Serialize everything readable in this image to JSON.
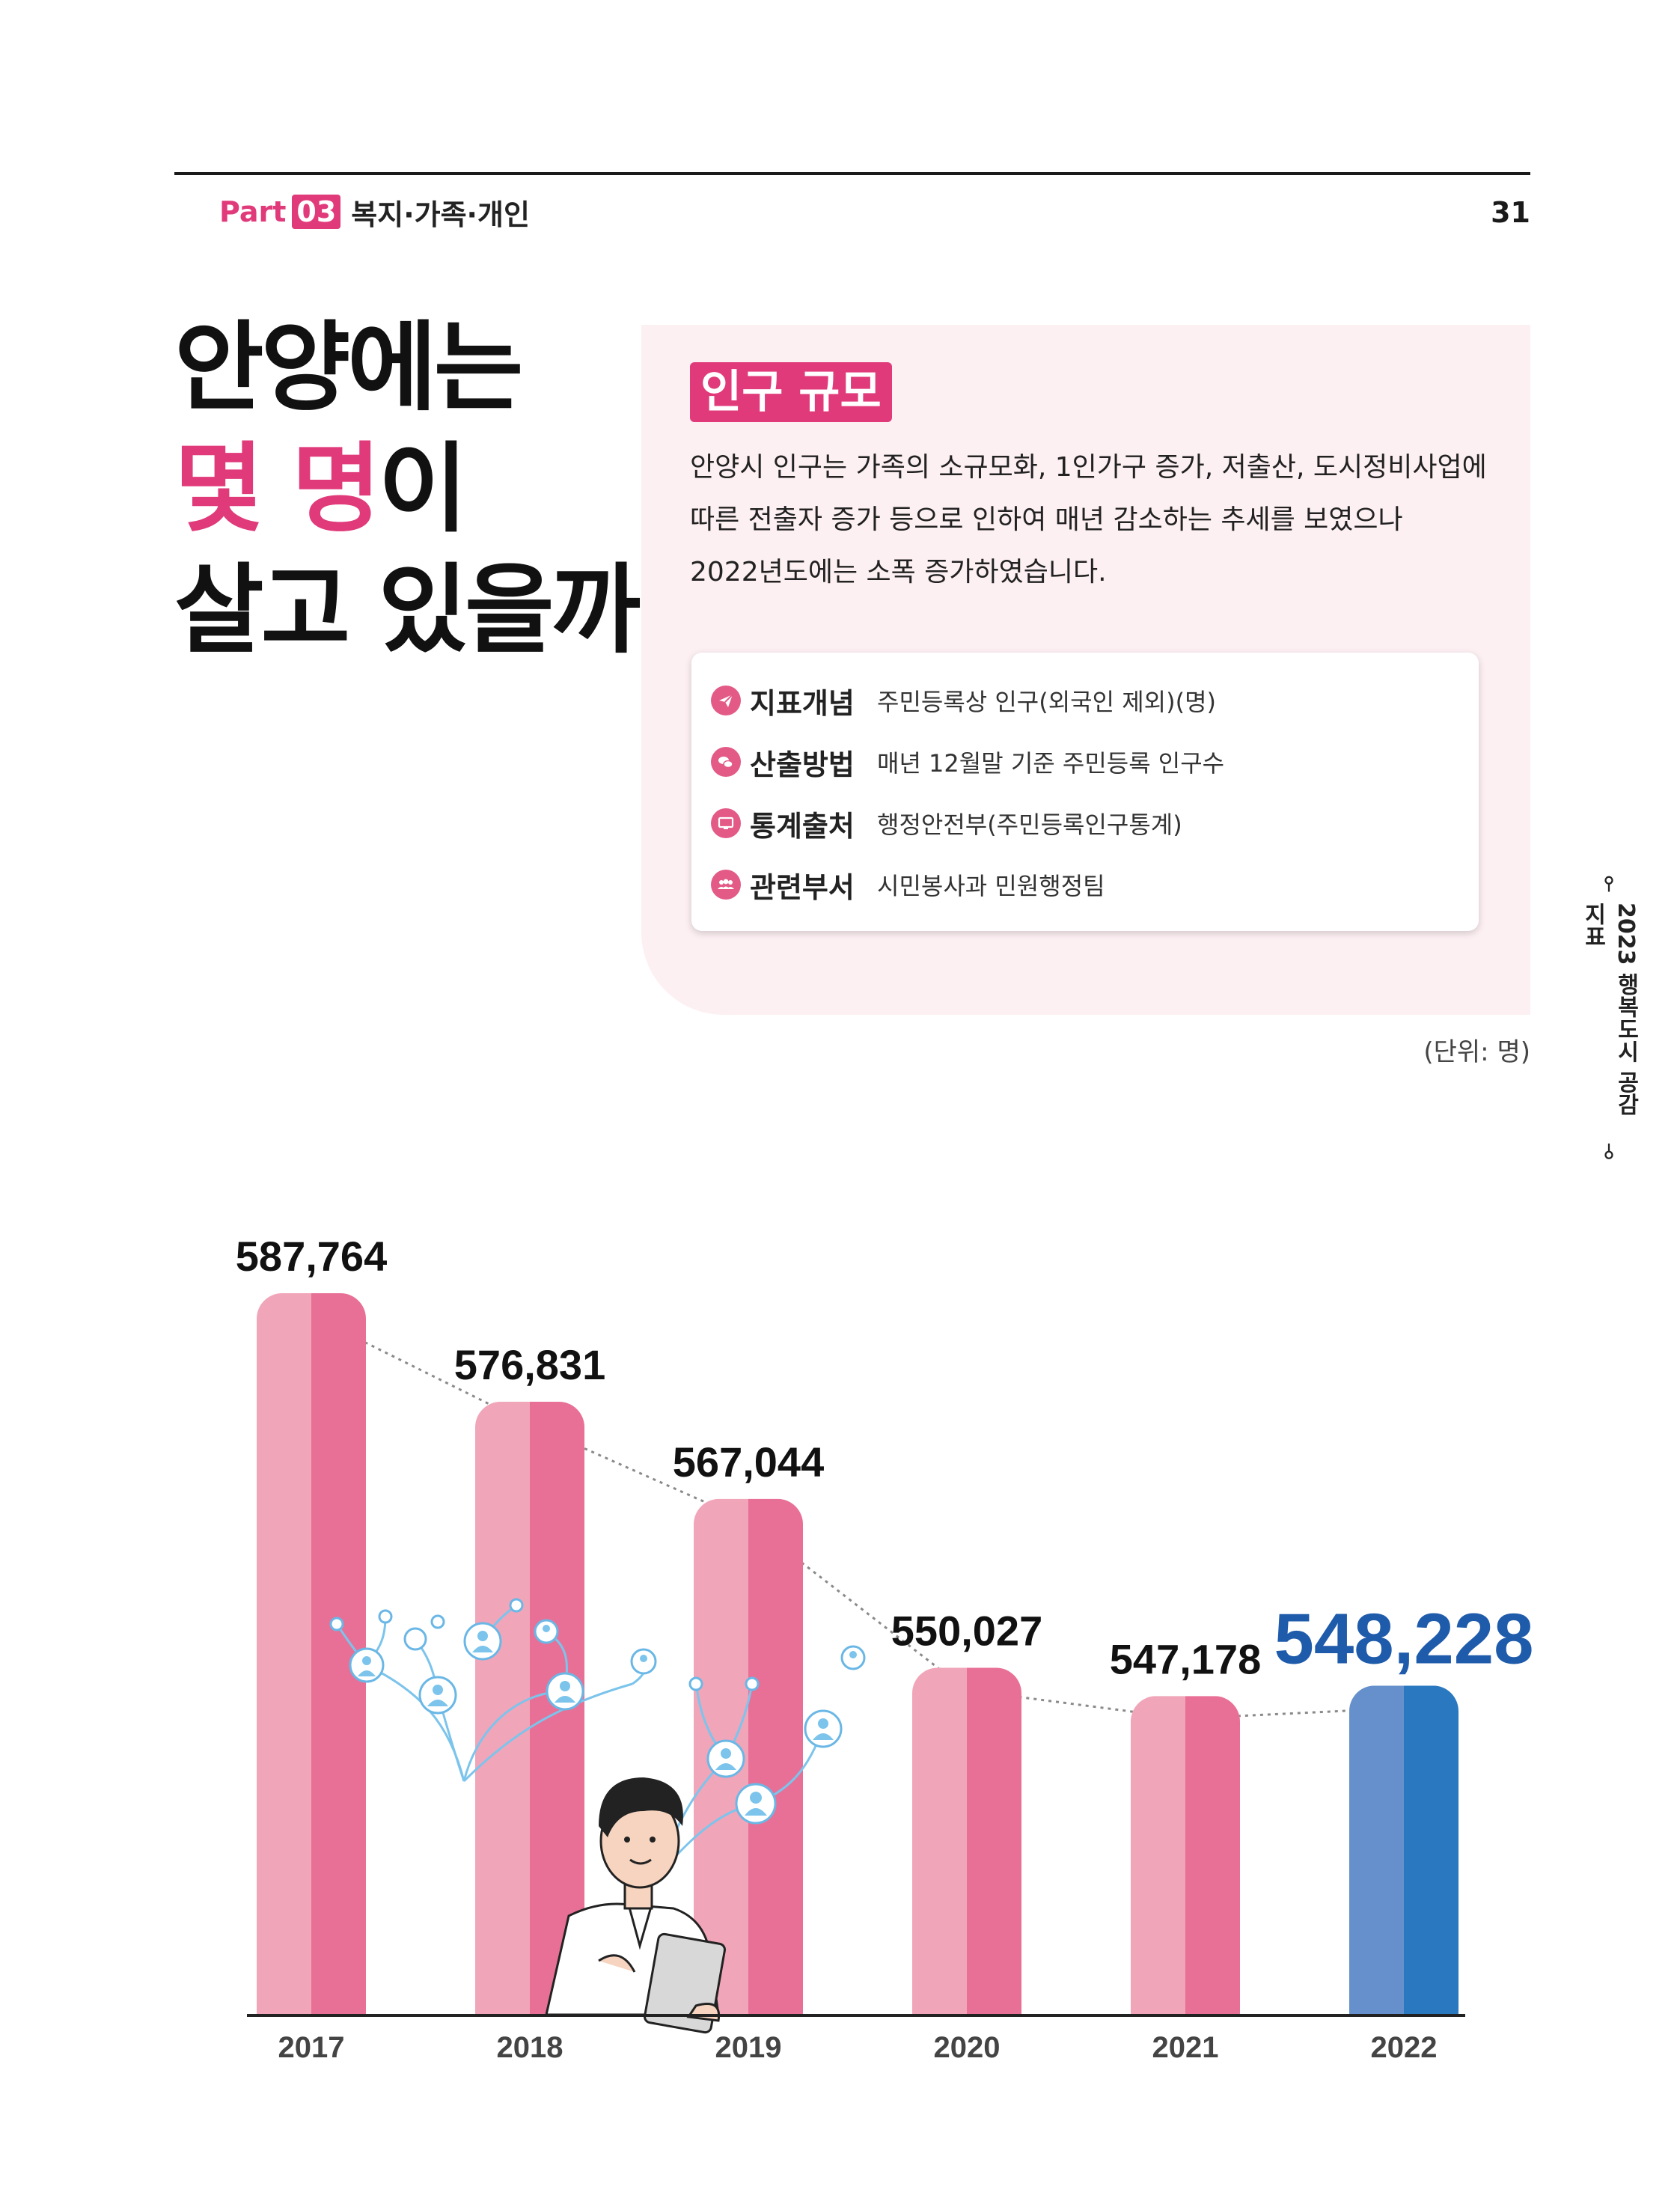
{
  "header": {
    "part_word": "Part",
    "part_number": "03",
    "part_title": "복지·가족·개인",
    "page_number": "31"
  },
  "headline": {
    "line1": "안양에는",
    "line2_accent": "몇 명",
    "line2_rest": "이",
    "line3": "살고 있을까?"
  },
  "section": {
    "badge": "인구 규모",
    "intro_line1": "안양시 인구는 가족의 소규모화, 1인가구 증가, 저출산, 도시정비사업에",
    "intro_line2": "따른 전출자 증가 등으로 인하여 매년 감소하는 추세를 보였으나",
    "intro_line3": "2022년도에는 소폭 증가하였습니다."
  },
  "meta": [
    {
      "key": "지표개념",
      "value": "주민등록상 인구(외국인 제외)(명)",
      "icon": "paper-plane-icon"
    },
    {
      "key": "산출방법",
      "value": "매년 12월말 기준 주민등록 인구수",
      "icon": "chat-bubbles-icon"
    },
    {
      "key": "통계출처",
      "value": "행정안전부(주민등록인구통계)",
      "icon": "monitor-icon"
    },
    {
      "key": "관련부서",
      "value": "시민봉사과 민원행정팀",
      "icon": "people-group-icon"
    }
  ],
  "unit_label": "(단위: 명)",
  "side_label": "2023 행복도시 공감지표",
  "colors": {
    "accent": "#e03a7a",
    "bar_pink_light": "#f1a5b9",
    "bar_pink_dark": "#e87096",
    "bar_blue_light": "#6690cb",
    "bar_blue_dark": "#2a78bf",
    "highlight_label": "#1f5bab",
    "panel_bg": "#fdf0f3"
  },
  "chart_data": {
    "type": "bar",
    "categories": [
      "2017",
      "2018",
      "2019",
      "2020",
      "2021",
      "2022"
    ],
    "values": [
      587764,
      576831,
      567044,
      550027,
      547178,
      548228
    ],
    "value_labels": [
      "587,764",
      "576,831",
      "567,044",
      "550,027",
      "547,178",
      "548,228"
    ],
    "highlight_index": 5,
    "trend_line": "dotted",
    "title": "",
    "xlabel": "",
    "ylabel": ""
  }
}
